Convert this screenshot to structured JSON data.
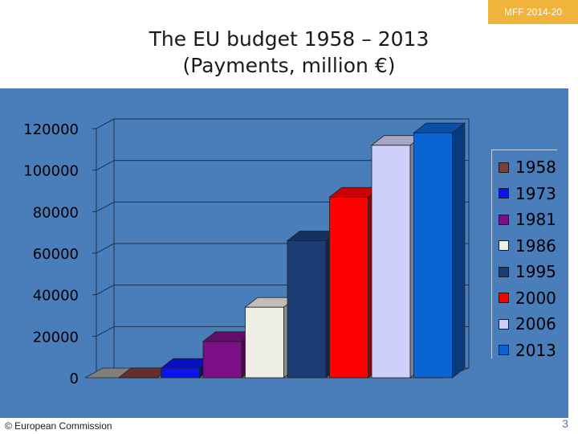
{
  "badge": "MFF 2014-20",
  "title_lines": [
    "The EU budget 1958 – 2013",
    "(Payments, million €)"
  ],
  "footer_credit": "© European Commission",
  "page_number": "3",
  "colors": {
    "background_panel": "#4a7ebb",
    "badge": "#f0b43c",
    "bars": [
      "#7f3b3b",
      "#0a14f0",
      "#7a0f86",
      "#efeee4",
      "#1c3d73",
      "#ff0000",
      "#cfcffb",
      "#0a64d2"
    ]
  },
  "chart_data": {
    "type": "bar",
    "categories": [
      "1958",
      "1973",
      "1981",
      "1986",
      "1995",
      "2000",
      "2006",
      "2013"
    ],
    "values": [
      100,
      4600,
      17500,
      34000,
      66000,
      87000,
      112000,
      118000
    ],
    "ylim": [
      0,
      120000
    ],
    "yticks": [
      "0",
      "20000",
      "40000",
      "60000",
      "80000",
      "100000",
      "120000"
    ],
    "title": "The EU budget 1958 – 2013 (Payments, million €)",
    "legend": [
      "1958",
      "1973",
      "1981",
      "1986",
      "1995",
      "2000",
      "2006",
      "2013"
    ],
    "legend_position": "right",
    "grid": true,
    "style": "3d"
  }
}
